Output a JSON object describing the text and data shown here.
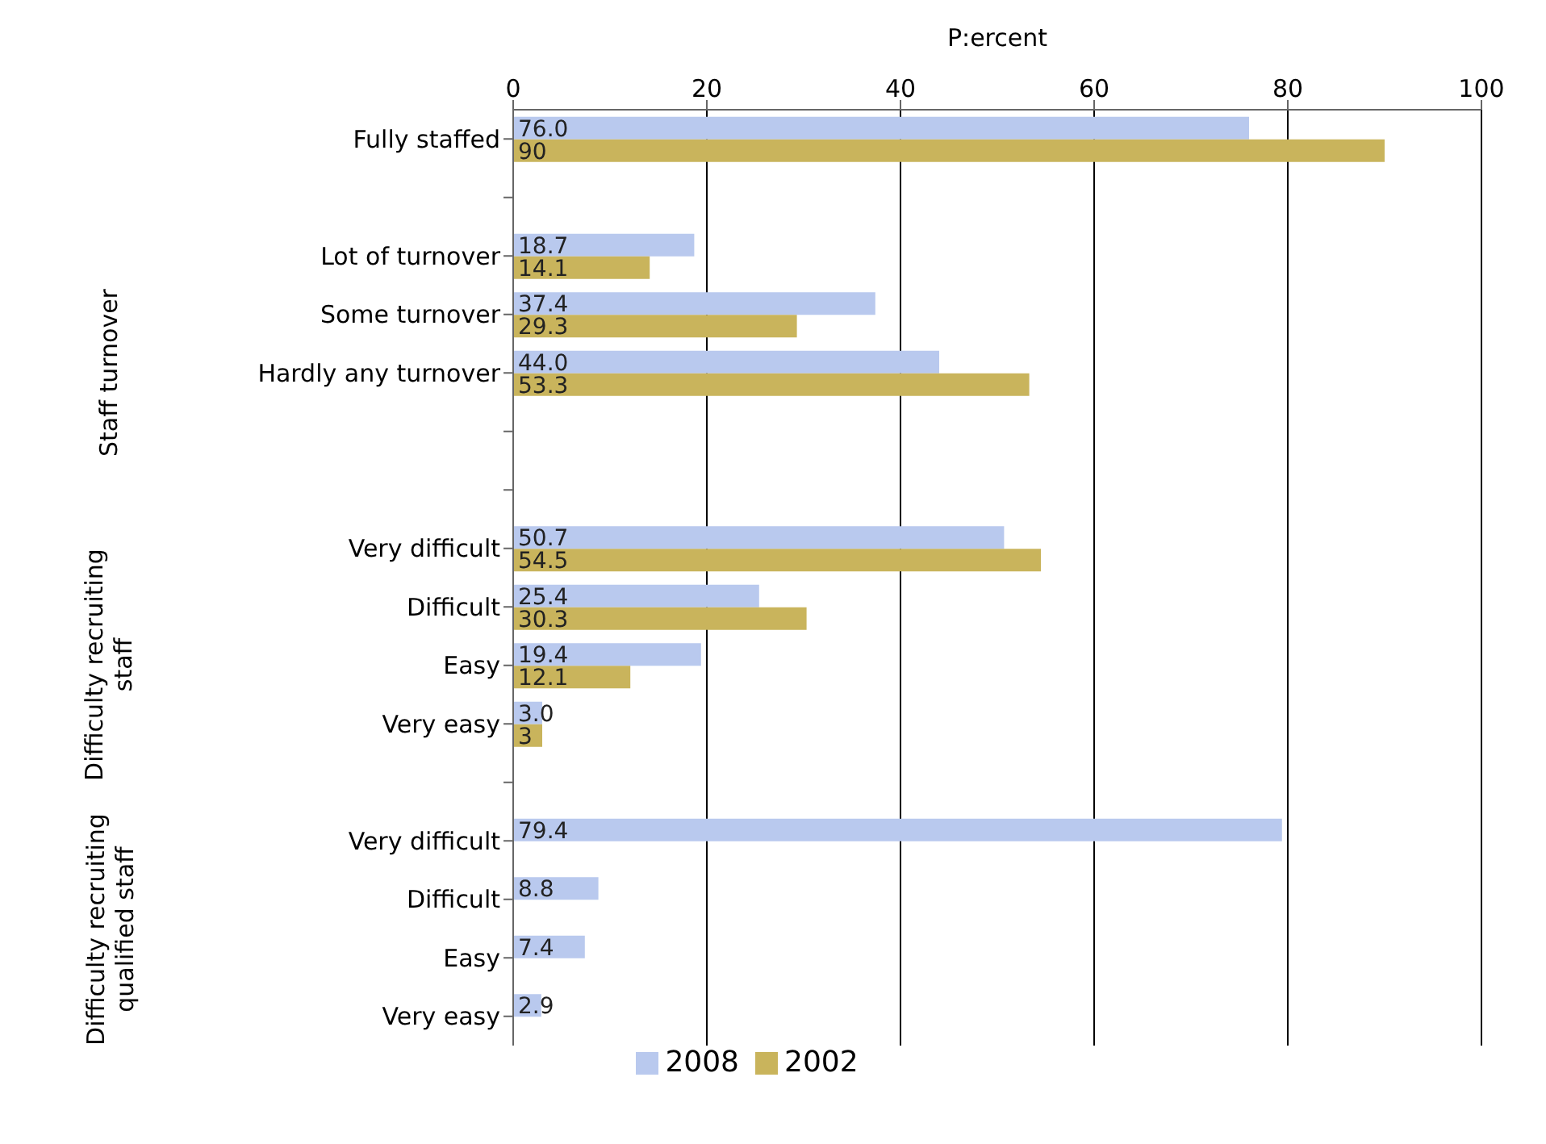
{
  "chart_data": {
    "type": "bar",
    "orientation": "horizontal",
    "xlabel": "P:ercent",
    "categories": [
      "Fully staffed",
      null,
      "Lot of turnover",
      "Some turnover",
      "Hardly any turnover",
      null,
      null,
      "Very difficult",
      "Difficult",
      "Easy",
      "Very easy",
      null,
      "Very difficult",
      "Difficult",
      "Easy",
      "Very easy"
    ],
    "annotations": [
      "Staff turnover",
      "Difficulty recruiting staff",
      "Difficulty recruiting qualified staff"
    ],
    "series": [
      {
        "name": "2008",
        "color": "#b9c9ee",
        "values": [
          76.0,
          null,
          18.7,
          37.4,
          44.0,
          null,
          null,
          50.7,
          25.4,
          19.4,
          3.0,
          null,
          79.4,
          8.8,
          7.4,
          2.9
        ],
        "value_labels": [
          "76.0",
          null,
          "18.7",
          "37.4",
          "44.0",
          null,
          null,
          "50.7",
          "25.4",
          "19.4",
          "3.0",
          null,
          "79.4",
          "8.8",
          "7.4",
          "2.9"
        ]
      },
      {
        "name": "2002",
        "color": "#c9b45c",
        "values": [
          90,
          null,
          14.1,
          29.3,
          53.3,
          null,
          null,
          54.5,
          30.3,
          12.1,
          3,
          null,
          null,
          null,
          null,
          null
        ],
        "value_labels": [
          "90",
          null,
          "14.1",
          "29.3",
          "53.3",
          null,
          null,
          "54.5",
          "30.3",
          "12.1",
          "3",
          null,
          null,
          null,
          null,
          null
        ]
      }
    ],
    "xlim": [
      0,
      100
    ],
    "xticks": [
      0,
      20,
      40,
      60,
      80,
      100
    ],
    "grid": "x",
    "legend": "bottom"
  }
}
